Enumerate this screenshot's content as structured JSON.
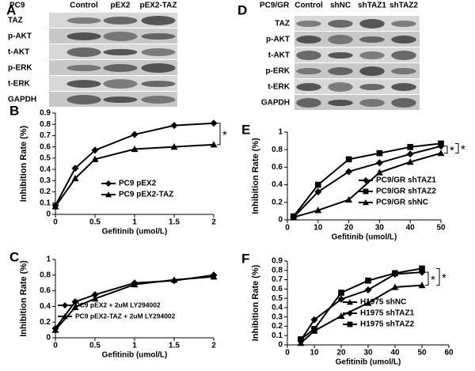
{
  "blots": [
    {
      "label": "A",
      "cell_line": "PC9",
      "lanes": [
        "Control",
        "pEX2",
        "pEX2-TAZ"
      ],
      "rows": [
        "TAZ",
        "p-AKT",
        "t-AKT",
        "p-ERK",
        "t-ERK",
        "GAPDH"
      ]
    },
    {
      "label": "D",
      "cell_line": "PC9/GR",
      "lanes": [
        "Control",
        "shNC",
        "shTAZ1",
        "shTAZ2"
      ],
      "rows": [
        "TAZ",
        "p-AKT",
        "t-AKT",
        "p-ERK",
        "t-ERK",
        "GAPDH"
      ]
    }
  ],
  "chart_data": [
    {
      "type": "line",
      "label": "B",
      "x_label": "Gefitinib (umol/L)",
      "y_label": "Inhibition Rate (%)",
      "x": [
        0,
        0.25,
        0.5,
        1,
        1.5,
        2
      ],
      "xlim": [
        0,
        2
      ],
      "xticks": [
        0,
        0.5,
        1,
        1.5,
        2
      ],
      "ylim": [
        0,
        0.9
      ],
      "yticks": [
        0,
        0.1,
        0.2,
        0.3,
        0.4,
        0.5,
        0.6,
        0.7,
        0.8,
        0.9
      ],
      "legend": "lower right",
      "series": [
        {
          "name": "PC9 pEX2",
          "color": "#000000",
          "marker": "diamond",
          "values": [
            0.08,
            0.41,
            0.57,
            0.71,
            0.79,
            0.81
          ]
        },
        {
          "name": "PC9 pEX2-TAZ",
          "color": "#000000",
          "marker": "triangle",
          "values": [
            0.07,
            0.32,
            0.49,
            0.58,
            0.6,
            0.62
          ]
        }
      ],
      "annotations": [
        "*"
      ]
    },
    {
      "type": "line",
      "label": "C",
      "x_label": "Gefitinib (umol/L)",
      "y_label": "Inhibition Rate (%)",
      "x": [
        0,
        0.25,
        0.5,
        1,
        1.5,
        2
      ],
      "xlim": [
        0,
        2
      ],
      "xticks": [
        0,
        0.5,
        1,
        1.5,
        2
      ],
      "ylim": [
        0,
        1
      ],
      "yticks": [
        0,
        0.2,
        0.4,
        0.6,
        0.8,
        1
      ],
      "legend": "lower right",
      "series": [
        {
          "name": "PC9 pEX2 + 2uM LY294002",
          "color": "#000000",
          "marker": "diamond",
          "values": [
            0.12,
            0.46,
            0.55,
            0.7,
            0.73,
            0.8
          ]
        },
        {
          "name": "PC9 pEX2-TAZ + 2uM LY294002",
          "color": "#000000",
          "marker": "triangle",
          "values": [
            0.1,
            0.39,
            0.5,
            0.68,
            0.74,
            0.78
          ]
        }
      ],
      "annotations": []
    },
    {
      "type": "line",
      "label": "E",
      "x_label": "Gefitinib (umol/L)",
      "y_label": "Inhibition Rate (%)",
      "x": [
        2,
        10,
        20,
        30,
        40,
        50
      ],
      "xlim": [
        0,
        50
      ],
      "xticks": [
        0,
        10,
        20,
        30,
        40,
        50
      ],
      "ylim": [
        0,
        1
      ],
      "yticks": [
        0,
        0.2,
        0.4,
        0.6,
        0.8,
        1
      ],
      "legend": "lower right",
      "series": [
        {
          "name": "PC9/GR shTAZ1",
          "color": "#000000",
          "marker": "diamond",
          "values": [
            0.03,
            0.32,
            0.55,
            0.65,
            0.75,
            0.84
          ]
        },
        {
          "name": "PC9/GR shTAZ2",
          "color": "#000000",
          "marker": "square",
          "values": [
            0.04,
            0.4,
            0.69,
            0.76,
            0.83,
            0.87
          ]
        },
        {
          "name": "PC9/GR shNC",
          "color": "#000000",
          "marker": "triangle",
          "values": [
            0.03,
            0.11,
            0.23,
            0.54,
            0.66,
            0.76
          ]
        }
      ],
      "annotations": [
        "*",
        "*"
      ]
    },
    {
      "type": "line",
      "label": "F",
      "x_label": "Gefitinib (umol/L)",
      "y_label": "Inhibition Rate (%)",
      "x": [
        5,
        10,
        20,
        30,
        40,
        50
      ],
      "xlim": [
        0,
        60
      ],
      "xticks": [
        0,
        10,
        20,
        30,
        40,
        50,
        60
      ],
      "ylim": [
        0,
        0.9
      ],
      "yticks": [
        0,
        0.1,
        0.2,
        0.3,
        0.4,
        0.5,
        0.6,
        0.7,
        0.8,
        0.9
      ],
      "legend": "lower right",
      "series": [
        {
          "name": "H1975 shNC",
          "color": "#000000",
          "marker": "triangle",
          "values": [
            0.02,
            0.15,
            0.31,
            0.45,
            0.62,
            0.64
          ]
        },
        {
          "name": "H1975 shTAZ1",
          "color": "#000000",
          "marker": "diamond",
          "values": [
            0.05,
            0.27,
            0.49,
            0.59,
            0.76,
            0.78
          ]
        },
        {
          "name": "H1975 shTAZ2",
          "color": "#000000",
          "marker": "square",
          "values": [
            0.06,
            0.17,
            0.56,
            0.69,
            0.77,
            0.82
          ]
        }
      ],
      "annotations": [
        "*",
        "*"
      ]
    }
  ]
}
